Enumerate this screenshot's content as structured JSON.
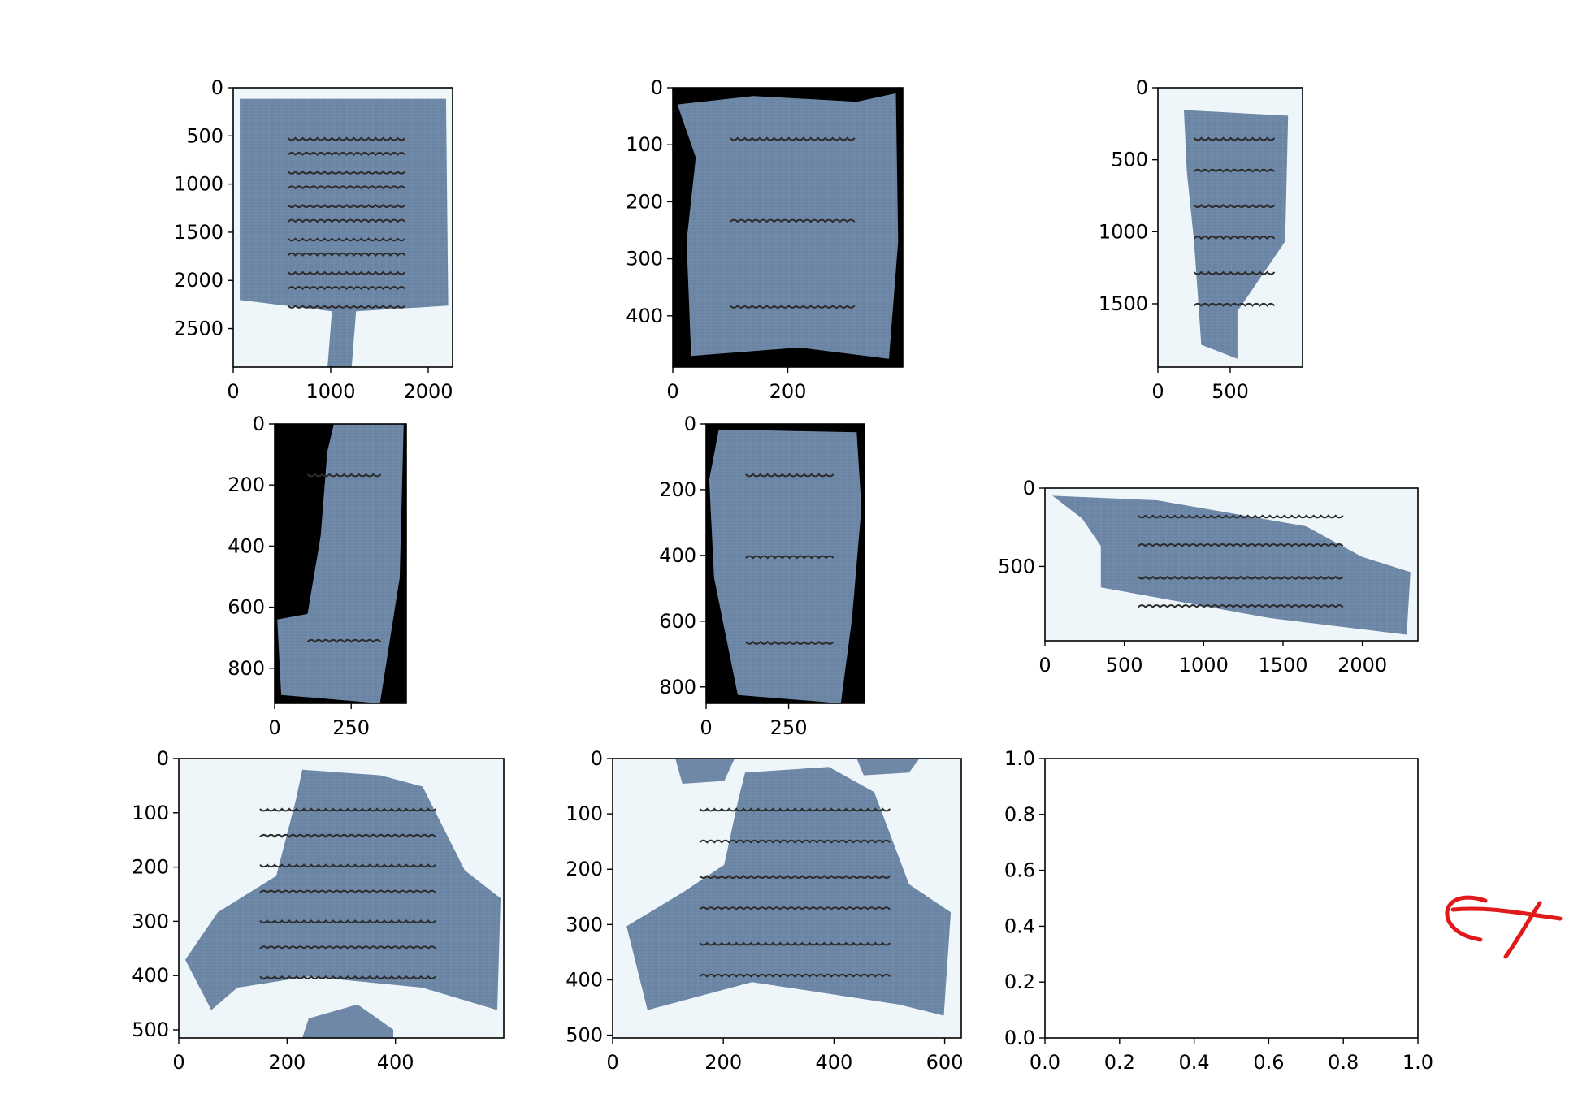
{
  "figure": {
    "layout": "3x3 grid of image subplots",
    "background": "#ffffff",
    "axis_color": "#000000",
    "papyrus_color": "#6f88a8",
    "ink_color": "#2b2b2b",
    "light_bg_color": "#eef6fa",
    "dark_bg_color": "#000000",
    "annotation_color": "#e01a1a"
  },
  "chart_data": [
    {
      "type": "image",
      "panel": 1,
      "background": "light",
      "image_width": 2250,
      "image_height": 2900,
      "xlim": [
        0,
        2250
      ],
      "ylim": [
        2900,
        0
      ],
      "xticks": [
        0,
        1000,
        2000
      ],
      "yticks": [
        0,
        500,
        1000,
        1500,
        2000,
        2500
      ]
    },
    {
      "type": "image",
      "panel": 2,
      "background": "dark",
      "image_width": 400,
      "image_height": 490,
      "xlim": [
        0,
        400
      ],
      "ylim": [
        490,
        0
      ],
      "xticks": [
        0,
        200
      ],
      "yticks": [
        0,
        100,
        200,
        300,
        400
      ]
    },
    {
      "type": "image",
      "panel": 3,
      "background": "light",
      "image_width": 1000,
      "image_height": 1940,
      "xlim": [
        0,
        1000
      ],
      "ylim": [
        1940,
        0
      ],
      "xticks": [
        0,
        500
      ],
      "yticks": [
        0,
        500,
        1000,
        1500
      ]
    },
    {
      "type": "image",
      "panel": 4,
      "background": "dark",
      "image_width": 430,
      "image_height": 915,
      "xlim": [
        0,
        430
      ],
      "ylim": [
        915,
        0
      ],
      "xticks": [
        0,
        250
      ],
      "yticks": [
        0,
        200,
        400,
        600,
        800
      ]
    },
    {
      "type": "image",
      "panel": 5,
      "background": "dark",
      "image_width": 480,
      "image_height": 850,
      "xlim": [
        0,
        480
      ],
      "ylim": [
        850,
        0
      ],
      "xticks": [
        0,
        250
      ],
      "yticks": [
        0,
        200,
        400,
        600,
        800
      ]
    },
    {
      "type": "image",
      "panel": 6,
      "background": "light",
      "image_width": 2350,
      "image_height": 975,
      "xlim": [
        0,
        2350
      ],
      "ylim": [
        975,
        0
      ],
      "xticks": [
        0,
        500,
        1000,
        1500,
        2000
      ],
      "yticks": [
        0,
        500
      ]
    },
    {
      "type": "image",
      "panel": 7,
      "background": "light",
      "image_width": 600,
      "image_height": 515,
      "xlim": [
        0,
        600
      ],
      "ylim": [
        515,
        0
      ],
      "xticks": [
        0,
        200,
        400
      ],
      "yticks": [
        0,
        100,
        200,
        300,
        400,
        500
      ]
    },
    {
      "type": "image",
      "panel": 8,
      "background": "light",
      "image_width": 630,
      "image_height": 505,
      "xlim": [
        0,
        630
      ],
      "ylim": [
        505,
        0
      ],
      "xticks": [
        0,
        200,
        400,
        600
      ],
      "yticks": [
        0,
        100,
        200,
        300,
        400,
        500
      ]
    },
    {
      "type": "empty",
      "panel": 9,
      "xlim": [
        0,
        1
      ],
      "ylim": [
        0,
        1
      ],
      "xticks": [
        0.0,
        0.2,
        0.4,
        0.6,
        0.8,
        1.0
      ],
      "yticks": [
        0.0,
        0.2,
        0.4,
        0.6,
        0.8,
        1.0
      ]
    }
  ]
}
